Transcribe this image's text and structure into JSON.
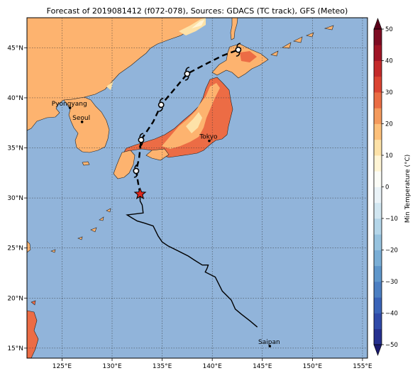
{
  "title": "Forecast of 2019081412 (f072-078), Sources: GDACS (TC track), GFS (Meteo)",
  "map": {
    "lon_range": [
      121.5,
      155.5
    ],
    "lat_range": [
      14,
      48
    ],
    "lon_ticks": [
      "125°E",
      "130°E",
      "135°E",
      "140°E",
      "145°E",
      "150°E",
      "155°E"
    ],
    "lat_ticks": [
      "15°N",
      "20°N",
      "25°N",
      "30°N",
      "35°N",
      "40°N",
      "45°N"
    ],
    "ocean_color": "#91b4da"
  },
  "cities": [
    {
      "name": "Pyongyang",
      "lon": 125.8,
      "lat": 39.0
    },
    {
      "name": "Seoul",
      "lon": 127.0,
      "lat": 37.6
    },
    {
      "name": "Tokyo",
      "lon": 139.7,
      "lat": 35.7
    },
    {
      "name": "Saipan",
      "lon": 145.75,
      "lat": 15.2
    }
  ],
  "track": {
    "observed": [
      [
        144.5,
        17.1
      ],
      [
        143.8,
        17.7
      ],
      [
        142.9,
        18.4
      ],
      [
        142.3,
        18.9
      ],
      [
        141.9,
        19.8
      ],
      [
        141.0,
        20.7
      ],
      [
        140.8,
        21.1
      ],
      [
        140.3,
        22.1
      ],
      [
        139.3,
        22.6
      ],
      [
        139.5,
        23.0
      ],
      [
        139.6,
        23.3
      ],
      [
        139.0,
        23.3
      ],
      [
        138.2,
        23.8
      ],
      [
        137.6,
        24.2
      ],
      [
        136.6,
        24.7
      ],
      [
        135.6,
        25.2
      ],
      [
        135.0,
        25.6
      ],
      [
        134.6,
        26.2
      ],
      [
        134.1,
        27.2
      ],
      [
        133.2,
        27.5
      ],
      [
        132.5,
        27.7
      ],
      [
        132.0,
        28.0
      ],
      [
        131.5,
        28.3
      ],
      [
        133.1,
        28.5
      ],
      [
        133.0,
        29.3
      ],
      [
        132.8,
        29.7
      ],
      [
        132.8,
        30.4
      ]
    ],
    "forecast": [
      [
        132.8,
        30.4
      ],
      [
        132.6,
        31.5
      ],
      [
        132.4,
        32.7
      ],
      [
        132.7,
        34.0
      ],
      [
        132.9,
        35.8
      ],
      [
        134.1,
        37.6
      ],
      [
        134.9,
        39.3
      ],
      [
        136.0,
        40.6
      ],
      [
        137.5,
        42.4
      ],
      [
        139.2,
        43.3
      ],
      [
        141.0,
        44.2
      ],
      [
        142.6,
        44.8
      ]
    ],
    "forecast_points": [
      [
        132.4,
        32.7
      ],
      [
        132.9,
        35.8
      ],
      [
        134.9,
        39.3
      ],
      [
        137.5,
        42.4
      ],
      [
        142.6,
        44.8
      ]
    ],
    "current_position": [
      132.8,
      30.4
    ],
    "current_color": "#e0281d"
  },
  "colorbar": {
    "label": "Min Temperature (°C)",
    "ticks": [
      -50,
      -40,
      -30,
      -20,
      -10,
      0,
      10,
      20,
      30,
      40,
      50
    ],
    "bands": [
      {
        "from": -55,
        "to": -50,
        "color": "#1a1a6e"
      },
      {
        "from": -50,
        "to": -45,
        "color": "#25308f"
      },
      {
        "from": -45,
        "to": -40,
        "color": "#2f4aa8"
      },
      {
        "from": -40,
        "to": -35,
        "color": "#3a64b8"
      },
      {
        "from": -35,
        "to": -30,
        "color": "#4c7fc2"
      },
      {
        "from": -30,
        "to": -25,
        "color": "#5f97cb"
      },
      {
        "from": -25,
        "to": -20,
        "color": "#7aaed6"
      },
      {
        "from": -20,
        "to": -15,
        "color": "#97c3df"
      },
      {
        "from": -15,
        "to": -10,
        "color": "#b4d6e9"
      },
      {
        "from": -10,
        "to": -5,
        "color": "#d1e6f1"
      },
      {
        "from": -5,
        "to": 0,
        "color": "#eaf3f8"
      },
      {
        "from": 0,
        "to": 5,
        "color": "#fbfcf7"
      },
      {
        "from": 5,
        "to": 10,
        "color": "#fff5d5"
      },
      {
        "from": 10,
        "to": 15,
        "color": "#fde2a8"
      },
      {
        "from": 15,
        "to": 20,
        "color": "#fdc07a"
      },
      {
        "from": 20,
        "to": 25,
        "color": "#f49a5c"
      },
      {
        "from": 25,
        "to": 30,
        "color": "#ea6d44"
      },
      {
        "from": 30,
        "to": 35,
        "color": "#db4432"
      },
      {
        "from": 35,
        "to": 40,
        "color": "#c42a2a"
      },
      {
        "from": 40,
        "to": 45,
        "color": "#a01526"
      },
      {
        "from": 45,
        "to": 50,
        "color": "#7e0c23"
      },
      {
        "from": 50,
        "to": 55,
        "color": "#5a001a"
      }
    ]
  },
  "legend_colors": {
    "land_warm": "#fdb36f",
    "land_hot": "#ec6c45",
    "land_cool": "#fde2a8",
    "land_cold": "#fff5d8",
    "coast": "#222222"
  }
}
